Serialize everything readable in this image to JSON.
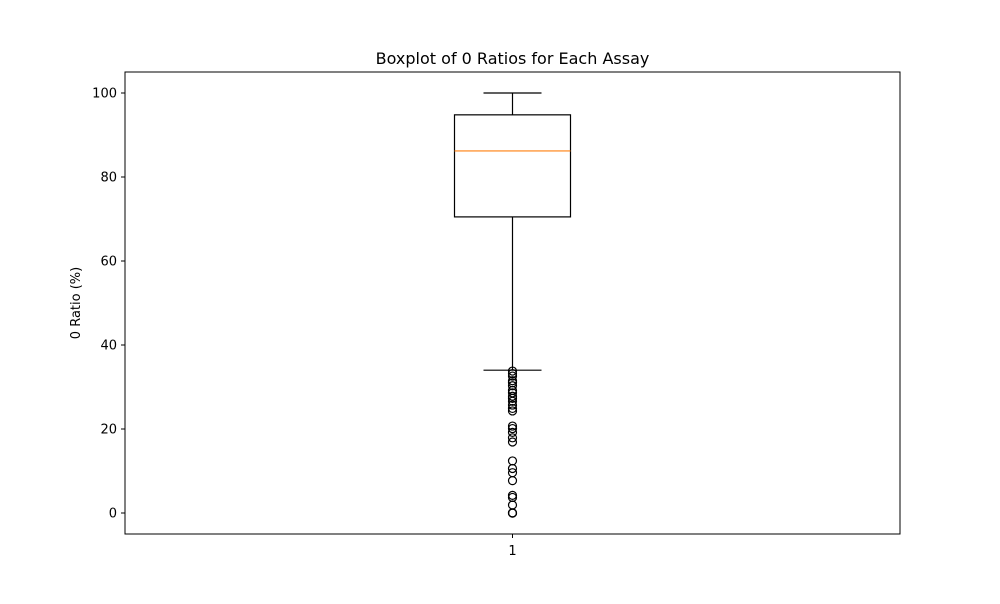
{
  "chart_data": {
    "type": "boxplot",
    "title": "Boxplot of 0 Ratios for Each Assay",
    "xlabel": "",
    "ylabel": "0 Ratio (%)",
    "categories": [
      "1"
    ],
    "ylim": [
      -5,
      105
    ],
    "yticks": [
      0,
      20,
      40,
      60,
      80,
      100
    ],
    "ytick_labels": [
      "0",
      "20",
      "40",
      "60",
      "80",
      "100"
    ],
    "grid": false,
    "boxes": [
      {
        "category": "1",
        "whisker_low": 34,
        "q1": 70.5,
        "median": 86.2,
        "q3": 94.8,
        "whisker_high": 100,
        "outliers": [
          33.8,
          33.2,
          32.6,
          31.5,
          31.0,
          30.3,
          29.2,
          28.6,
          27.8,
          27.3,
          26.6,
          25.7,
          24.9,
          24.3,
          20.7,
          20.1,
          19.2,
          17.9,
          16.9,
          12.4,
          10.6,
          9.6,
          7.7,
          4.2,
          3.7,
          1.9,
          0.0,
          0.0,
          0.0
        ]
      }
    ],
    "colors": {
      "box": "#000000",
      "median": "#ff7f0e",
      "outlier_edge": "#000000"
    }
  }
}
